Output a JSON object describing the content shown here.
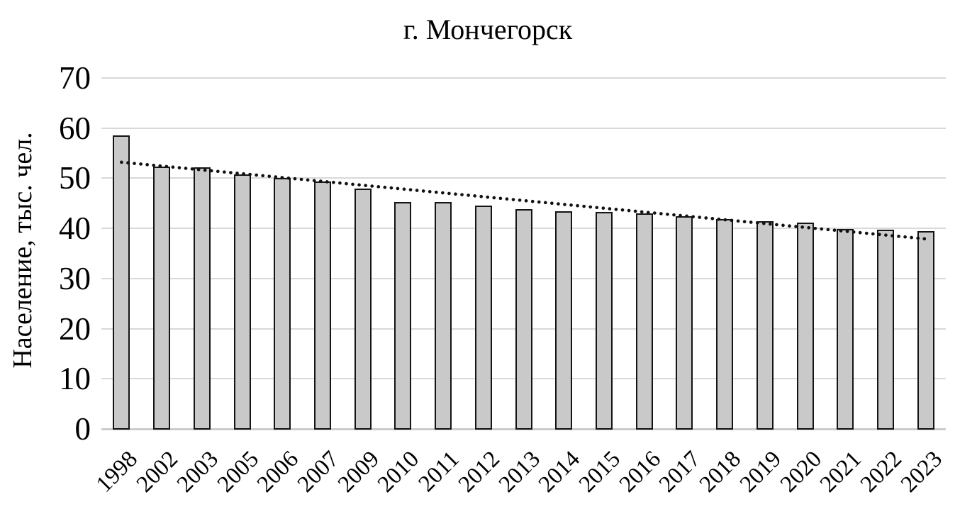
{
  "chart_data": {
    "type": "bar",
    "title": "г. Мончегорск",
    "xlabel": "",
    "ylabel": "Население, тыс. чел.",
    "categories": [
      "1998",
      "2002",
      "2003",
      "2005",
      "2006",
      "2007",
      "2009",
      "2010",
      "2011",
      "2012",
      "2013",
      "2014",
      "2015",
      "2016",
      "2017",
      "2018",
      "2019",
      "2020",
      "2021",
      "2022",
      "2023"
    ],
    "values": [
      58.6,
      52.3,
      52.2,
      50.7,
      50.1,
      49.3,
      48.0,
      45.3,
      45.3,
      44.6,
      43.9,
      43.4,
      43.3,
      43.0,
      42.4,
      41.8,
      41.4,
      41.1,
      39.9,
      39.8,
      39.4
    ],
    "ylim": [
      0,
      70
    ],
    "yticks": [
      0,
      10,
      20,
      30,
      40,
      50,
      60,
      70
    ],
    "grid": true,
    "legend": "none",
    "trendline": {
      "style": "dotted",
      "start_value": 53.2,
      "end_value": 37.9
    },
    "colors": {
      "bar_fill": "#c9c9c9",
      "bar_border": "#141414",
      "gridline": "#d9d9d9",
      "axis_line": "#cccccc",
      "trend": "#111111",
      "text": "#000000",
      "background": "#ffffff"
    }
  }
}
